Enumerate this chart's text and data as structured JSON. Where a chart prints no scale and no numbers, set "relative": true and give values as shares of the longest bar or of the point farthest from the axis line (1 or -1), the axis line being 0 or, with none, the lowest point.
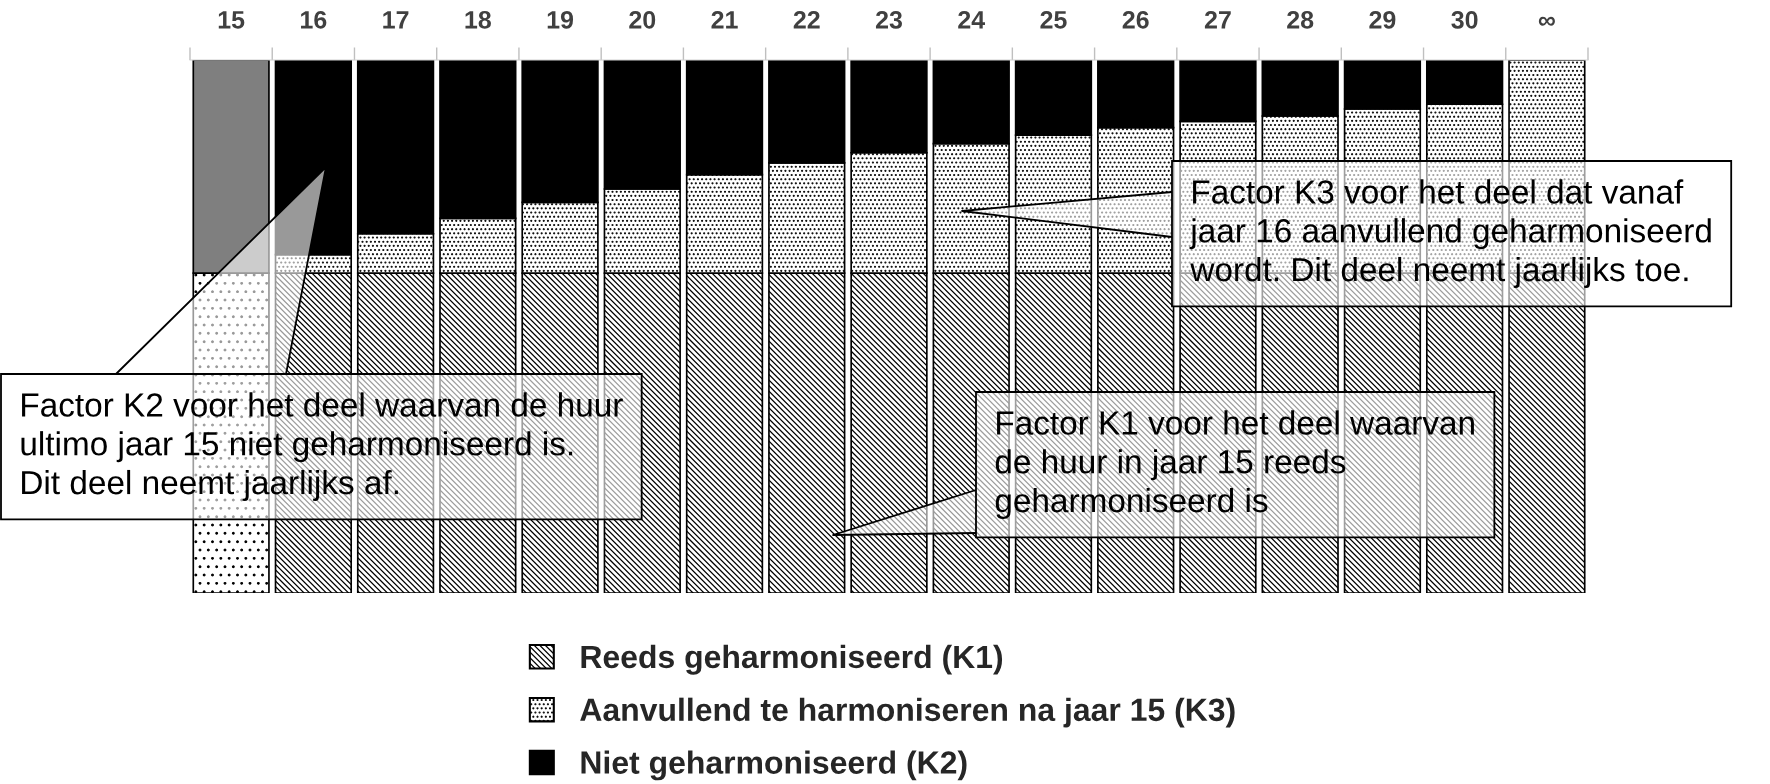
{
  "chart_data": {
    "type": "bar",
    "stacked": true,
    "relative": true,
    "legend": "bottom",
    "categories": [
      "15",
      "16",
      "17",
      "18",
      "19",
      "20",
      "21",
      "22",
      "23",
      "24",
      "25",
      "26",
      "27",
      "28",
      "29",
      "30",
      "∞"
    ],
    "series": [
      {
        "name": "Reeds geharmoniseerd (K1)",
        "color": "#000000",
        "values": [
          0.6,
          0.6,
          0.6,
          0.6,
          0.6,
          0.6,
          0.6,
          0.6,
          0.6,
          0.6,
          0.6,
          0.6,
          0.6,
          0.6,
          0.6,
          0.6,
          0.6
        ]
      },
      {
        "name": "Aanvullend te harmoniseren na jaar 15 (K3)",
        "color": "#000000",
        "values": [
          0,
          0.035,
          0.074,
          0.103,
          0.133,
          0.158,
          0.185,
          0.207,
          0.226,
          0.243,
          0.259,
          0.273,
          0.285,
          0.295,
          0.308,
          0.317,
          0.4
        ]
      },
      {
        "name": "Niet geharmoniseerd (K2)",
        "color": "#000000",
        "colors": [
          "#7f7f7f",
          "#000000",
          "#000000",
          "#000000",
          "#000000",
          "#000000",
          "#000000",
          "#000000",
          "#000000",
          "#000000",
          "#000000",
          "#000000",
          "#000000",
          "#000000",
          "#000000",
          "#000000",
          "#000000"
        ],
        "values": [
          0.4,
          0.365,
          0.326,
          0.297,
          0.267,
          0.242,
          0.215,
          0.193,
          0.174,
          0.157,
          0.141,
          0.127,
          0.115,
          0.105,
          0.092,
          0.083,
          0
        ]
      }
    ],
    "annotations": [
      "Factor K3 voor het deel dat vanaf\njaar 16 aanvullend geharmoniseerd\nwordt. Dit deel neemt jaarlijks toe.",
      "Factor K2 voor het deel waarvan de huur\nultimo jaar 15 niet geharmoniseerd is.\nDit deel neemt jaarlijks af.",
      "Factor K1 voor het deel waarvan\nde huur in jaar 15 reeds\ngeharmoniseerd is"
    ]
  }
}
